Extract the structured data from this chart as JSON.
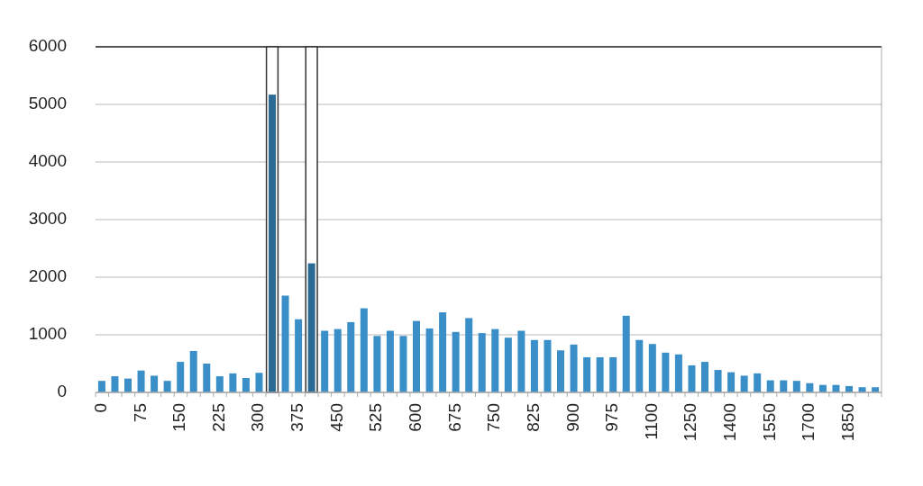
{
  "chart_data": {
    "type": "bar",
    "categories": [
      "0",
      null,
      null,
      "75",
      null,
      null,
      "150",
      null,
      null,
      "225",
      null,
      null,
      "300",
      null,
      null,
      "375",
      null,
      null,
      "450",
      null,
      null,
      "525",
      null,
      null,
      "600",
      null,
      null,
      "675",
      null,
      null,
      "750",
      null,
      null,
      "825",
      null,
      null,
      "900",
      null,
      null,
      "975",
      null,
      null,
      "1100",
      null,
      null,
      "1250",
      null,
      null,
      "1400",
      null,
      null,
      "1550",
      null,
      null,
      "1700",
      null,
      null,
      "1850",
      null,
      null
    ],
    "series": [
      {
        "color": "#ffffff",
        "values": [
          null,
          null,
          null,
          null,
          null,
          null,
          null,
          null,
          null,
          null,
          null,
          null,
          null,
          6000,
          null,
          null,
          6000,
          null,
          null,
          null,
          null,
          null,
          null,
          null,
          null,
          null,
          null,
          null,
          null,
          null,
          null,
          null,
          null,
          null,
          null,
          null,
          null,
          null,
          null,
          null,
          null,
          null,
          null,
          null,
          null,
          null,
          null,
          null,
          null,
          null,
          null,
          null,
          null,
          null,
          null,
          null,
          null,
          null,
          null,
          null
        ]
      },
      {
        "colors": [
          "#3a8fc8",
          "#3a8fc8",
          "#3a8fc8",
          "#3a8fc8",
          "#3a8fc8",
          "#3a8fc8",
          "#3a8fc8",
          "#3a8fc8",
          "#3a8fc8",
          "#3a8fc8",
          "#3a8fc8",
          "#3a8fc8",
          "#3a8fc8",
          "#2a6a95",
          "#3a8fc8",
          "#3a8fc8",
          "#2a6a95",
          "#3a8fc8",
          "#3a8fc8",
          "#3a8fc8",
          "#3a8fc8",
          "#3a8fc8",
          "#3a8fc8",
          "#3a8fc8",
          "#3a8fc8",
          "#3a8fc8",
          "#3a8fc8",
          "#3a8fc8",
          "#3a8fc8",
          "#3a8fc8",
          "#3a8fc8",
          "#3a8fc8",
          "#3a8fc8",
          "#3a8fc8",
          "#3a8fc8",
          "#3a8fc8",
          "#3a8fc8",
          "#3a8fc8",
          "#3a8fc8",
          "#3a8fc8",
          "#3a8fc8",
          "#3a8fc8",
          "#3a8fc8",
          "#3a8fc8",
          "#3a8fc8",
          "#3a8fc8",
          "#3a8fc8",
          "#3a8fc8",
          "#3a8fc8",
          "#3a8fc8",
          "#3a8fc8",
          "#3a8fc8",
          "#3a8fc8",
          "#3a8fc8",
          "#3a8fc8",
          "#3a8fc8",
          "#3a8fc8",
          "#3a8fc8",
          "#3a8fc8",
          "#3a8fc8"
        ],
        "values": [
          200,
          280,
          240,
          380,
          290,
          200,
          530,
          720,
          500,
          280,
          330,
          250,
          340,
          5170,
          1680,
          1270,
          2240,
          1070,
          1100,
          1220,
          1460,
          980,
          1070,
          980,
          1240,
          1110,
          1390,
          1050,
          1290,
          1030,
          1100,
          950,
          1070,
          910,
          910,
          730,
          830,
          610,
          610,
          610,
          1330,
          910,
          840,
          690,
          660,
          470,
          530,
          390,
          350,
          290,
          330,
          210,
          210,
          200,
          160,
          130,
          130,
          110,
          90,
          90
        ]
      }
    ],
    "ylim": [
      0,
      6000
    ],
    "yticks": [
      0,
      1000,
      2000,
      3000,
      4000,
      5000,
      6000
    ],
    "grid": "y"
  }
}
